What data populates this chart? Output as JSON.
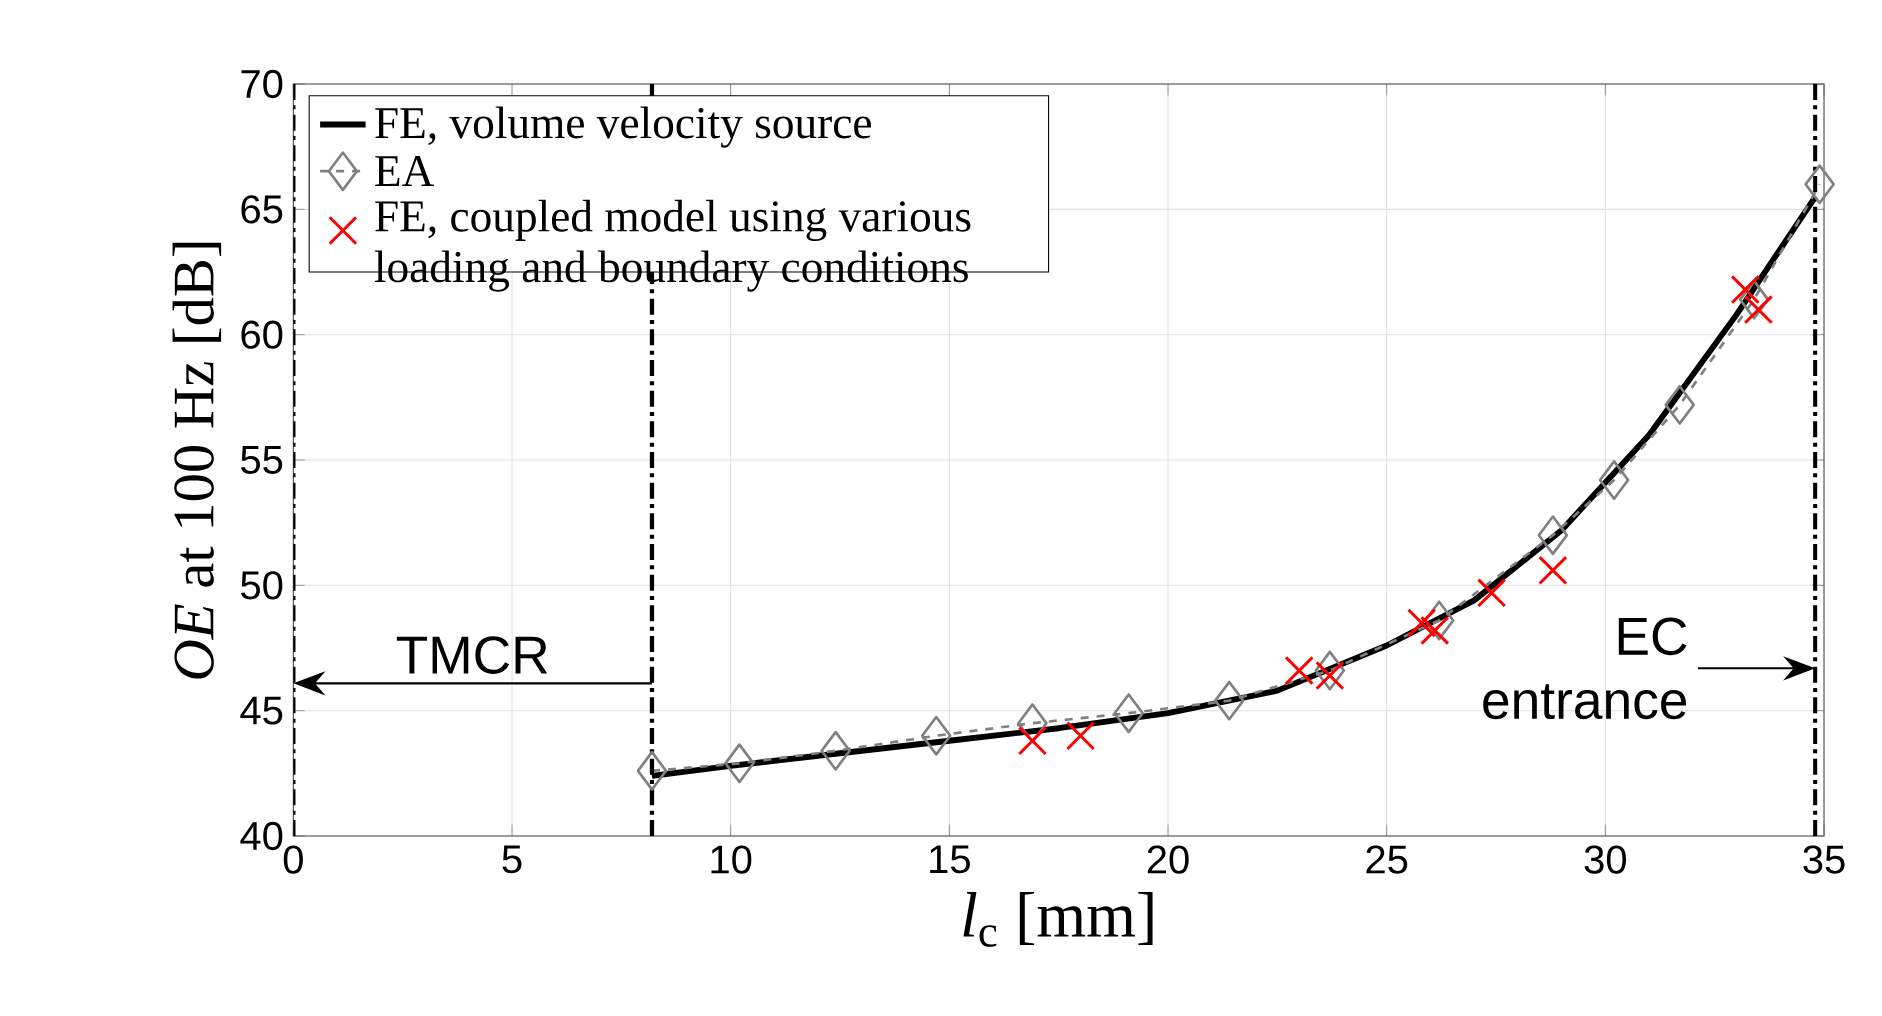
{
  "chart_data": {
    "type": "line",
    "xlabel": "*l*$_{c}$ [mm]",
    "ylabel": "*OE* at 100 Hz [dB]",
    "xlim": [
      0,
      35
    ],
    "ylim": [
      40,
      70
    ],
    "xticks": [
      0,
      5,
      10,
      15,
      20,
      25,
      30,
      35
    ],
    "yticks": [
      40,
      45,
      50,
      55,
      60,
      65,
      70
    ],
    "grid": true,
    "legend": "top left",
    "series": [
      {
        "name": "FE, volume velocity source",
        "color": "#000000",
        "line_style": "solid",
        "marker": "none",
        "x": [
          8.2,
          10,
          12.5,
          15,
          17.5,
          20,
          22.5,
          25,
          27,
          29,
          31,
          33,
          34.8
        ],
        "values": [
          42.4,
          42.8,
          43.3,
          43.8,
          44.3,
          44.9,
          45.8,
          47.6,
          49.4,
          52.2,
          56.0,
          60.8,
          65.5
        ]
      },
      {
        "name": "EA",
        "color": "#808080",
        "line_style": "dashed",
        "marker": "diamond",
        "x": [
          8.2,
          10.2,
          12.4,
          14.7,
          16.9,
          19.1,
          21.4,
          23.7,
          26.2,
          28.8,
          30.2,
          31.7,
          33.4,
          34.9
        ],
        "values": [
          42.6,
          42.9,
          43.4,
          44.0,
          44.5,
          44.9,
          45.4,
          46.6,
          48.6,
          52.0,
          54.2,
          57.2,
          61.4,
          66.0
        ]
      },
      {
        "name": "FE, coupled model using various loading and boundary conditions",
        "type": "scatter",
        "color": "#ff0000",
        "marker": "cross",
        "x": [
          16.9,
          18.0,
          23.0,
          23.7,
          25.8,
          26.1,
          27.4,
          28.8,
          33.2,
          33.5
        ],
        "values": [
          43.8,
          44.0,
          46.6,
          46.4,
          48.5,
          48.2,
          49.7,
          50.6,
          61.8,
          61.0
        ]
      }
    ],
    "ref_lines": [
      {
        "axis": "x",
        "value": 0,
        "color": "#000000"
      },
      {
        "axis": "x",
        "value": 8.2,
        "color": "#000000"
      },
      {
        "axis": "x",
        "value": 34.8,
        "color": "#000000"
      }
    ],
    "annotations": [
      "TMCR",
      "EC entrance"
    ]
  }
}
